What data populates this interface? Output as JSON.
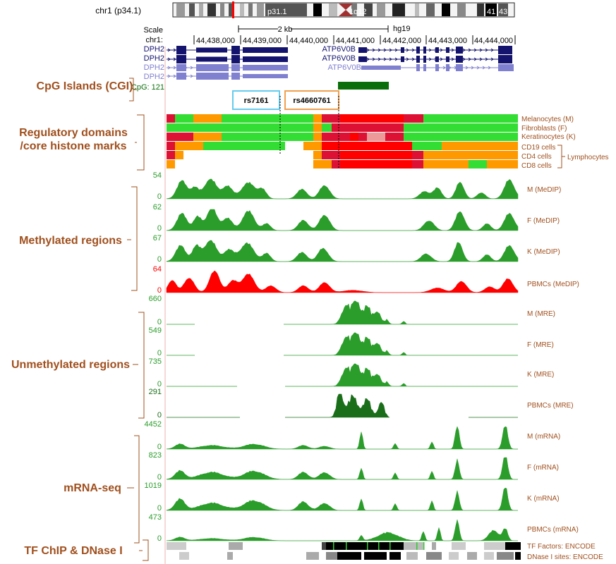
{
  "ideogram": {
    "chrom": "chr1 (p34.1)",
    "bands": [
      {
        "label": "p31.1"
      },
      {
        "label": "1q12"
      },
      {
        "label": "41"
      },
      {
        "label": "43"
      }
    ]
  },
  "scale": {
    "label": "Scale",
    "bar_label": "2 kb",
    "assembly": "hg19",
    "chr_label": "chr1:",
    "ticks": [
      "44,438,000",
      "44,439,000",
      "44,440,000",
      "44,441,000",
      "44,442,000",
      "44,443,000",
      "44,444,000"
    ]
  },
  "genes": {
    "left": [
      "DPH2",
      "DPH2",
      "DPH2",
      "DPH2"
    ],
    "right": [
      "ATP6V0B",
      "ATP6V0B",
      "ATP6V0B"
    ]
  },
  "cpg": {
    "label": "CpG: 121"
  },
  "snps": [
    "rs7161",
    "rs4660761"
  ],
  "sections": [
    {
      "title": "CpG Islands (CGI)",
      "lines": [
        "CpG Islands (CGI)"
      ]
    },
    {
      "title": "Regulatory domains /core histone marks",
      "lines": [
        "Regulatory domains",
        "/core histone marks"
      ]
    },
    {
      "title": "Methylated  regions",
      "lines": [
        "Methylated  regions"
      ]
    },
    {
      "title": "Unmethylated regions",
      "lines": [
        "Unmethylated regions"
      ]
    },
    {
      "title": "mRNA-seq",
      "lines": [
        "mRNA-seq"
      ]
    },
    {
      "title": "TF ChIP & DNase I",
      "lines": [
        "TF ChIP & DNase I"
      ]
    }
  ],
  "regulatory": {
    "rows": [
      "Melanocytes (M)",
      "Fibroblasts (F)",
      "Keratinocytes (K)",
      "CD19 cells",
      "CD4 cells",
      "CD8 cells"
    ],
    "bracket_label": "Lymphocytes",
    "colors": {
      "active": "#33dd33",
      "weak": "#ff9900",
      "strong": "#dd1133",
      "red": "#ff0000",
      "pink": "#ee9999"
    }
  },
  "tracks": {
    "methylated": [
      {
        "label": "M (MeDIP)",
        "max": "54",
        "min": "0",
        "color": "#2a9d2a"
      },
      {
        "label": "F (MeDIP)",
        "max": "62",
        "min": "0",
        "color": "#2a9d2a"
      },
      {
        "label": "K (MeDIP)",
        "max": "67",
        "min": "0",
        "color": "#2a9d2a"
      },
      {
        "label": "PBMCs (MeDIP)",
        "max": "64",
        "min": "0",
        "color": "#ff0000"
      }
    ],
    "unmethylated": [
      {
        "label": "M (MRE)",
        "max": "660",
        "min": "0",
        "color": "#2a9d2a"
      },
      {
        "label": "F (MRE)",
        "max": "549",
        "min": "0",
        "color": "#2a9d2a"
      },
      {
        "label": "K (MRE)",
        "max": "735",
        "min": "0",
        "color": "#2a9d2a"
      },
      {
        "label": "PBMCs (MRE)",
        "max": "291",
        "min": "0",
        "color": "#1a6e1a"
      }
    ],
    "mrna": [
      {
        "label": "M (mRNA)",
        "max": "4452",
        "min": "0",
        "color": "#2a9d2a"
      },
      {
        "label": "F (mRNA)",
        "max": "823",
        "min": "0",
        "color": "#2a9d2a"
      },
      {
        "label": "K (mRNA)",
        "max": "1019",
        "min": "0",
        "color": "#2a9d2a"
      },
      {
        "label": "PBMCs (mRNA)",
        "max": "473",
        "min": "0",
        "color": "#2a9d2a"
      }
    ]
  },
  "encode": {
    "tf_label": "TF Factors: ENCODE",
    "dnase_label": "DNase I sites: ENCODE"
  },
  "colors": {
    "section_title": "#a0501e",
    "track_label": "#a0501e",
    "gene_dark": "#14146e",
    "gene_light": "#8080d0",
    "cpg_green": "#0a6e0a",
    "axis_green": "#2a9d2a",
    "snp1_border": "#66ccee",
    "snp2_border": "#f0a050"
  }
}
